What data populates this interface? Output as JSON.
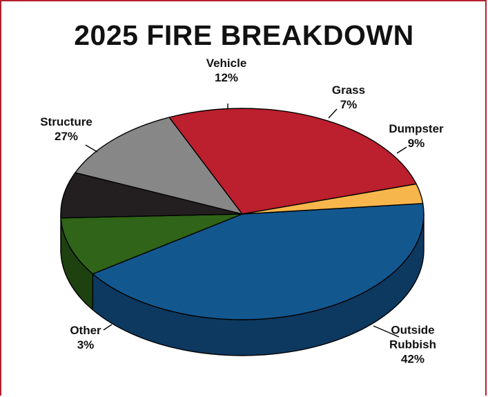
{
  "chart_data": {
    "type": "pie",
    "title": "2025 FIRE BREAKDOWN",
    "three_d": true,
    "categories": [
      "Outside Rubbish",
      "Dumpster",
      "Grass",
      "Vehicle",
      "Structure",
      "Other"
    ],
    "values": [
      42,
      9,
      7,
      12,
      27,
      3
    ],
    "value_labels": [
      "42%",
      "9%",
      "7%",
      "12%",
      "27%",
      "3%"
    ],
    "label_lines": [
      [
        "Outside",
        "Rubbish"
      ],
      [
        "Dumpster"
      ],
      [
        "Grass"
      ],
      [
        "Vehicle"
      ],
      [
        "Structure"
      ],
      [
        "Other"
      ]
    ],
    "colors": [
      "#13578f",
      "#2f6419",
      "#231f20",
      "#878787",
      "#bc1f2d",
      "#f7b64b"
    ],
    "side_colors": [
      "#0d3960",
      "#1d4210",
      "#141213",
      "#5a5a5a",
      "#80141e",
      "#b88630"
    ],
    "frame_color": "#b5202e"
  }
}
